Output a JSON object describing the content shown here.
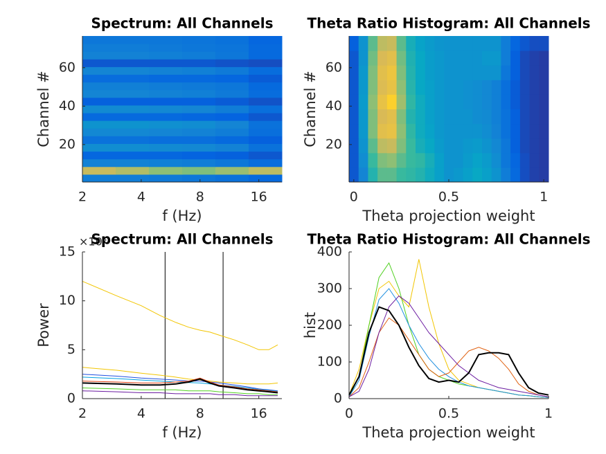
{
  "chart_data": [
    {
      "type": "heatmap",
      "title": "Spectrum: All Channels",
      "xlabel": "f (Hz)",
      "ylabel": "Channel #",
      "xscale": "log",
      "xlim": [
        2,
        21
      ],
      "xticks": [
        2,
        4,
        8,
        16
      ],
      "ylim": [
        0.5,
        76.5
      ],
      "yticks": [
        20,
        40,
        60
      ],
      "colormap": "parula",
      "clim": [
        0,
        1
      ],
      "z": [
        [
          0.22,
          0.22,
          0.21,
          0.2,
          0.18,
          0.15
        ],
        [
          0.72,
          0.68,
          0.62,
          0.6,
          0.64,
          0.7
        ],
        [
          0.24,
          0.24,
          0.23,
          0.22,
          0.2,
          0.16
        ],
        [
          0.14,
          0.14,
          0.14,
          0.13,
          0.12,
          0.1
        ],
        [
          0.28,
          0.28,
          0.27,
          0.26,
          0.24,
          0.18
        ],
        [
          0.18,
          0.18,
          0.17,
          0.17,
          0.15,
          0.12
        ],
        [
          0.26,
          0.26,
          0.25,
          0.24,
          0.22,
          0.17
        ],
        [
          0.3,
          0.3,
          0.29,
          0.28,
          0.25,
          0.18
        ],
        [
          0.15,
          0.15,
          0.15,
          0.14,
          0.13,
          0.1
        ],
        [
          0.27,
          0.27,
          0.26,
          0.25,
          0.22,
          0.17
        ],
        [
          0.12,
          0.12,
          0.12,
          0.12,
          0.11,
          0.09
        ],
        [
          0.25,
          0.25,
          0.24,
          0.23,
          0.21,
          0.16
        ],
        [
          0.23,
          0.23,
          0.22,
          0.21,
          0.2,
          0.15
        ],
        [
          0.16,
          0.16,
          0.15,
          0.15,
          0.14,
          0.11
        ],
        [
          0.25,
          0.25,
          0.24,
          0.23,
          0.21,
          0.16
        ],
        [
          0.1,
          0.1,
          0.1,
          0.1,
          0.09,
          0.08
        ],
        [
          0.24,
          0.24,
          0.23,
          0.22,
          0.2,
          0.15
        ],
        [
          0.22,
          0.22,
          0.21,
          0.2,
          0.19,
          0.15
        ],
        [
          0.2,
          0.2,
          0.2,
          0.19,
          0.18,
          0.14
        ]
      ]
    },
    {
      "type": "heatmap",
      "title": "Theta Ratio Histogram: All Channels",
      "xlabel": "Theta projection weight",
      "ylabel": "Channel #",
      "xscale": "linear",
      "xlim": [
        -0.025,
        1.025
      ],
      "xticks": [
        0,
        0.5,
        1
      ],
      "ylim": [
        0.5,
        76.5
      ],
      "yticks": [
        20,
        40,
        60
      ],
      "colormap": "parula",
      "clim": [
        0,
        1
      ],
      "z": [
        [
          0.1,
          0.25,
          0.45,
          0.55,
          0.55,
          0.5,
          0.48,
          0.45,
          0.4,
          0.35,
          0.3,
          0.32,
          0.35,
          0.38,
          0.35,
          0.3,
          0.22,
          0.15,
          0.08,
          0.05,
          0.04
        ],
        [
          0.1,
          0.28,
          0.5,
          0.6,
          0.62,
          0.55,
          0.5,
          0.48,
          0.42,
          0.35,
          0.3,
          0.3,
          0.33,
          0.36,
          0.33,
          0.28,
          0.2,
          0.14,
          0.08,
          0.05,
          0.04
        ],
        [
          0.1,
          0.3,
          0.55,
          0.7,
          0.72,
          0.6,
          0.5,
          0.42,
          0.38,
          0.33,
          0.3,
          0.3,
          0.32,
          0.33,
          0.3,
          0.26,
          0.2,
          0.12,
          0.07,
          0.05,
          0.04
        ],
        [
          0.1,
          0.32,
          0.6,
          0.78,
          0.8,
          0.62,
          0.48,
          0.4,
          0.36,
          0.32,
          0.3,
          0.3,
          0.3,
          0.3,
          0.28,
          0.24,
          0.18,
          0.12,
          0.07,
          0.05,
          0.04
        ],
        [
          0.1,
          0.32,
          0.6,
          0.75,
          0.78,
          0.6,
          0.45,
          0.4,
          0.35,
          0.32,
          0.3,
          0.3,
          0.3,
          0.28,
          0.27,
          0.23,
          0.18,
          0.12,
          0.07,
          0.05,
          0.04
        ],
        [
          0.1,
          0.33,
          0.62,
          0.8,
          0.88,
          0.65,
          0.48,
          0.4,
          0.35,
          0.32,
          0.3,
          0.3,
          0.29,
          0.28,
          0.26,
          0.23,
          0.17,
          0.11,
          0.07,
          0.05,
          0.04
        ],
        [
          0.1,
          0.32,
          0.6,
          0.76,
          0.8,
          0.62,
          0.46,
          0.38,
          0.35,
          0.32,
          0.3,
          0.3,
          0.29,
          0.28,
          0.26,
          0.23,
          0.17,
          0.11,
          0.07,
          0.05,
          0.04
        ],
        [
          0.1,
          0.32,
          0.6,
          0.78,
          0.82,
          0.6,
          0.45,
          0.38,
          0.34,
          0.32,
          0.3,
          0.3,
          0.3,
          0.3,
          0.3,
          0.3,
          0.2,
          0.12,
          0.07,
          0.05,
          0.04
        ],
        [
          0.1,
          0.3,
          0.58,
          0.75,
          0.78,
          0.58,
          0.44,
          0.38,
          0.34,
          0.32,
          0.3,
          0.3,
          0.3,
          0.3,
          0.32,
          0.32,
          0.22,
          0.12,
          0.07,
          0.05,
          0.04
        ],
        [
          0.12,
          0.3,
          0.55,
          0.7,
          0.72,
          0.55,
          0.42,
          0.36,
          0.33,
          0.31,
          0.3,
          0.3,
          0.3,
          0.3,
          0.3,
          0.3,
          0.22,
          0.14,
          0.1,
          0.08,
          0.08
        ]
      ]
    },
    {
      "type": "line",
      "title": "Spectrum: All Channels",
      "xlabel": "f (Hz)",
      "ylabel": "Power",
      "y_exponent": "×10⁵",
      "xscale": "log",
      "xlim": [
        2,
        21
      ],
      "xticks": [
        2,
        4,
        8,
        16
      ],
      "ylim": [
        0,
        15
      ],
      "yticks": [
        0,
        5,
        10,
        15
      ],
      "vlines": [
        5.3,
        10.5
      ],
      "x": [
        2,
        3,
        4,
        5,
        6,
        7,
        8,
        9,
        10,
        12,
        14,
        16,
        18,
        20
      ],
      "series": [
        {
          "color": "#f2c500",
          "values": [
            12,
            10.5,
            9.5,
            8.5,
            7.8,
            7.3,
            7,
            6.8,
            6.5,
            6,
            5.5,
            5,
            5,
            5.5
          ]
        },
        {
          "color": "#f2c500",
          "values": [
            3.2,
            2.9,
            2.6,
            2.4,
            2.2,
            2,
            1.9,
            1.8,
            1.7,
            1.6,
            1.5,
            1.5,
            1.5,
            1.6
          ]
        },
        {
          "color": "#1f4fe0",
          "values": [
            2.5,
            2.3,
            2.1,
            2,
            1.9,
            1.8,
            1.8,
            1.7,
            1.6,
            1.4,
            1.2,
            1,
            0.9,
            0.8
          ]
        },
        {
          "color": "#00a0e0",
          "values": [
            2.2,
            2.05,
            1.9,
            1.8,
            1.7,
            1.65,
            1.6,
            1.5,
            1.4,
            1.25,
            1.1,
            0.95,
            0.85,
            0.75
          ]
        },
        {
          "color": "#e04010",
          "values": [
            1.8,
            1.7,
            1.6,
            1.6,
            1.7,
            1.8,
            2.1,
            1.7,
            1.4,
            1.2,
            1,
            0.9,
            0.8,
            0.7
          ]
        },
        {
          "color": "#000000",
          "values": [
            1.6,
            1.5,
            1.4,
            1.4,
            1.5,
            1.7,
            2,
            1.6,
            1.3,
            1.1,
            0.9,
            0.8,
            0.7,
            0.6
          ]
        },
        {
          "color": "#50d020",
          "values": [
            1.1,
            1,
            0.9,
            0.9,
            0.9,
            0.8,
            0.8,
            0.8,
            0.7,
            0.6,
            0.5,
            0.5,
            0.4,
            0.4
          ]
        },
        {
          "color": "#6a1aa0",
          "values": [
            0.8,
            0.7,
            0.6,
            0.6,
            0.5,
            0.5,
            0.5,
            0.5,
            0.4,
            0.4,
            0.3,
            0.3,
            0.3,
            0.3
          ]
        }
      ]
    },
    {
      "type": "line",
      "title": "Theta Ratio Histogram: All Channels",
      "xlabel": "Theta projection weight",
      "ylabel": "hist",
      "xscale": "linear",
      "xlim": [
        0,
        1
      ],
      "xticks": [
        0,
        0.5,
        1
      ],
      "ylim": [
        0,
        400
      ],
      "yticks": [
        0,
        100,
        200,
        300,
        400
      ],
      "x": [
        0,
        0.05,
        0.1,
        0.15,
        0.2,
        0.25,
        0.3,
        0.35,
        0.4,
        0.45,
        0.5,
        0.55,
        0.6,
        0.65,
        0.7,
        0.75,
        0.8,
        0.85,
        0.9,
        0.95,
        1
      ],
      "series": [
        {
          "color": "#f2c500",
          "values": [
            10,
            80,
            200,
            300,
            320,
            280,
            250,
            380,
            250,
            150,
            80,
            50,
            40,
            30,
            25,
            20,
            15,
            10,
            8,
            5,
            3
          ]
        },
        {
          "color": "#50d020",
          "values": [
            5,
            60,
            200,
            330,
            370,
            300,
            200,
            120,
            80,
            60,
            50,
            40,
            35,
            30,
            25,
            20,
            15,
            10,
            8,
            5,
            3
          ]
        },
        {
          "color": "#1f8fe0",
          "values": [
            5,
            50,
            170,
            270,
            300,
            260,
            200,
            150,
            110,
            80,
            60,
            45,
            35,
            30,
            25,
            20,
            15,
            10,
            8,
            5,
            3
          ]
        },
        {
          "color": "#e06010",
          "values": [
            5,
            30,
            100,
            180,
            220,
            200,
            160,
            120,
            80,
            60,
            70,
            100,
            130,
            140,
            130,
            110,
            80,
            40,
            20,
            10,
            5
          ]
        },
        {
          "color": "#6a1aa0",
          "values": [
            5,
            20,
            80,
            180,
            250,
            280,
            260,
            220,
            180,
            150,
            120,
            90,
            70,
            50,
            40,
            30,
            25,
            20,
            15,
            10,
            5
          ]
        },
        {
          "color": "#000000",
          "values": [
            10,
            60,
            180,
            250,
            240,
            200,
            140,
            90,
            55,
            45,
            50,
            45,
            70,
            120,
            125,
            125,
            120,
            70,
            30,
            15,
            10
          ]
        }
      ]
    }
  ]
}
